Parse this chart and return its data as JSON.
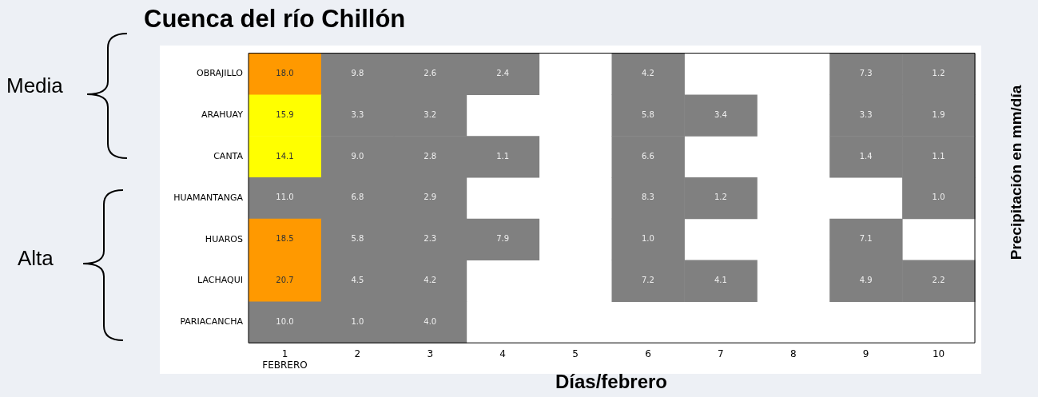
{
  "chart_data": {
    "type": "heatmap",
    "title": "Cuenca del río Chillón",
    "xlabel": "Días/febrero",
    "y2label": "Precipitación en mm/día",
    "annotations": [
      "Media",
      "Alta"
    ],
    "categories": [
      "1\nFEBRERO",
      "2",
      "3",
      "4",
      "5",
      "6",
      "7",
      "8",
      "9",
      "10"
    ],
    "y_categories": [
      "OBRAJILLO",
      "ARAHUAY",
      "CANTA",
      "HUAMANTANGA",
      "HUAROS",
      "LACHAQUI",
      "PARIACANCHA"
    ],
    "cells": [
      [
        18.0,
        9.8,
        2.6,
        2.4,
        null,
        4.2,
        null,
        null,
        7.3,
        1.2
      ],
      [
        15.9,
        3.3,
        3.2,
        null,
        null,
        5.8,
        3.4,
        null,
        3.3,
        1.9
      ],
      [
        14.1,
        9.0,
        2.8,
        1.1,
        null,
        6.6,
        null,
        null,
        1.4,
        1.1
      ],
      [
        11.0,
        6.8,
        2.9,
        null,
        null,
        8.3,
        1.2,
        null,
        null,
        1.0
      ],
      [
        18.5,
        5.8,
        2.3,
        7.9,
        null,
        1.0,
        null,
        null,
        7.1,
        null
      ],
      [
        20.7,
        4.5,
        4.2,
        null,
        null,
        7.2,
        4.1,
        null,
        4.9,
        2.2
      ],
      [
        10.0,
        1.0,
        4.0,
        null,
        null,
        null,
        null,
        null,
        null,
        null
      ]
    ],
    "cell_labels": [
      [
        "18.0",
        "9.8",
        "2.6",
        "2.4",
        null,
        "4.2",
        null,
        null,
        "7.3",
        "1.2"
      ],
      [
        "15.9",
        "3.3",
        "3.2",
        null,
        null,
        "5.8",
        "3.4",
        null,
        "3.3",
        "1.9"
      ],
      [
        "14.1",
        "9.0",
        "2.8",
        "1.1",
        null,
        "6.6",
        null,
        null,
        "1.4",
        "1.1"
      ],
      [
        "11.0",
        "6.8",
        "2.9",
        null,
        null,
        "8.3",
        "1.2",
        null,
        null,
        "1.0"
      ],
      [
        "18.5",
        "5.8",
        "2.3",
        "7.9",
        null,
        "1.0",
        null,
        null,
        "7.1",
        null
      ],
      [
        "20.7",
        "4.5",
        "4.2",
        null,
        null,
        "7.2",
        "4.1",
        null,
        "4.9",
        "2.2"
      ],
      [
        "10.0",
        "1.0",
        "4.0",
        null,
        null,
        null,
        null,
        null,
        null,
        null
      ]
    ],
    "data_labels": true
  }
}
